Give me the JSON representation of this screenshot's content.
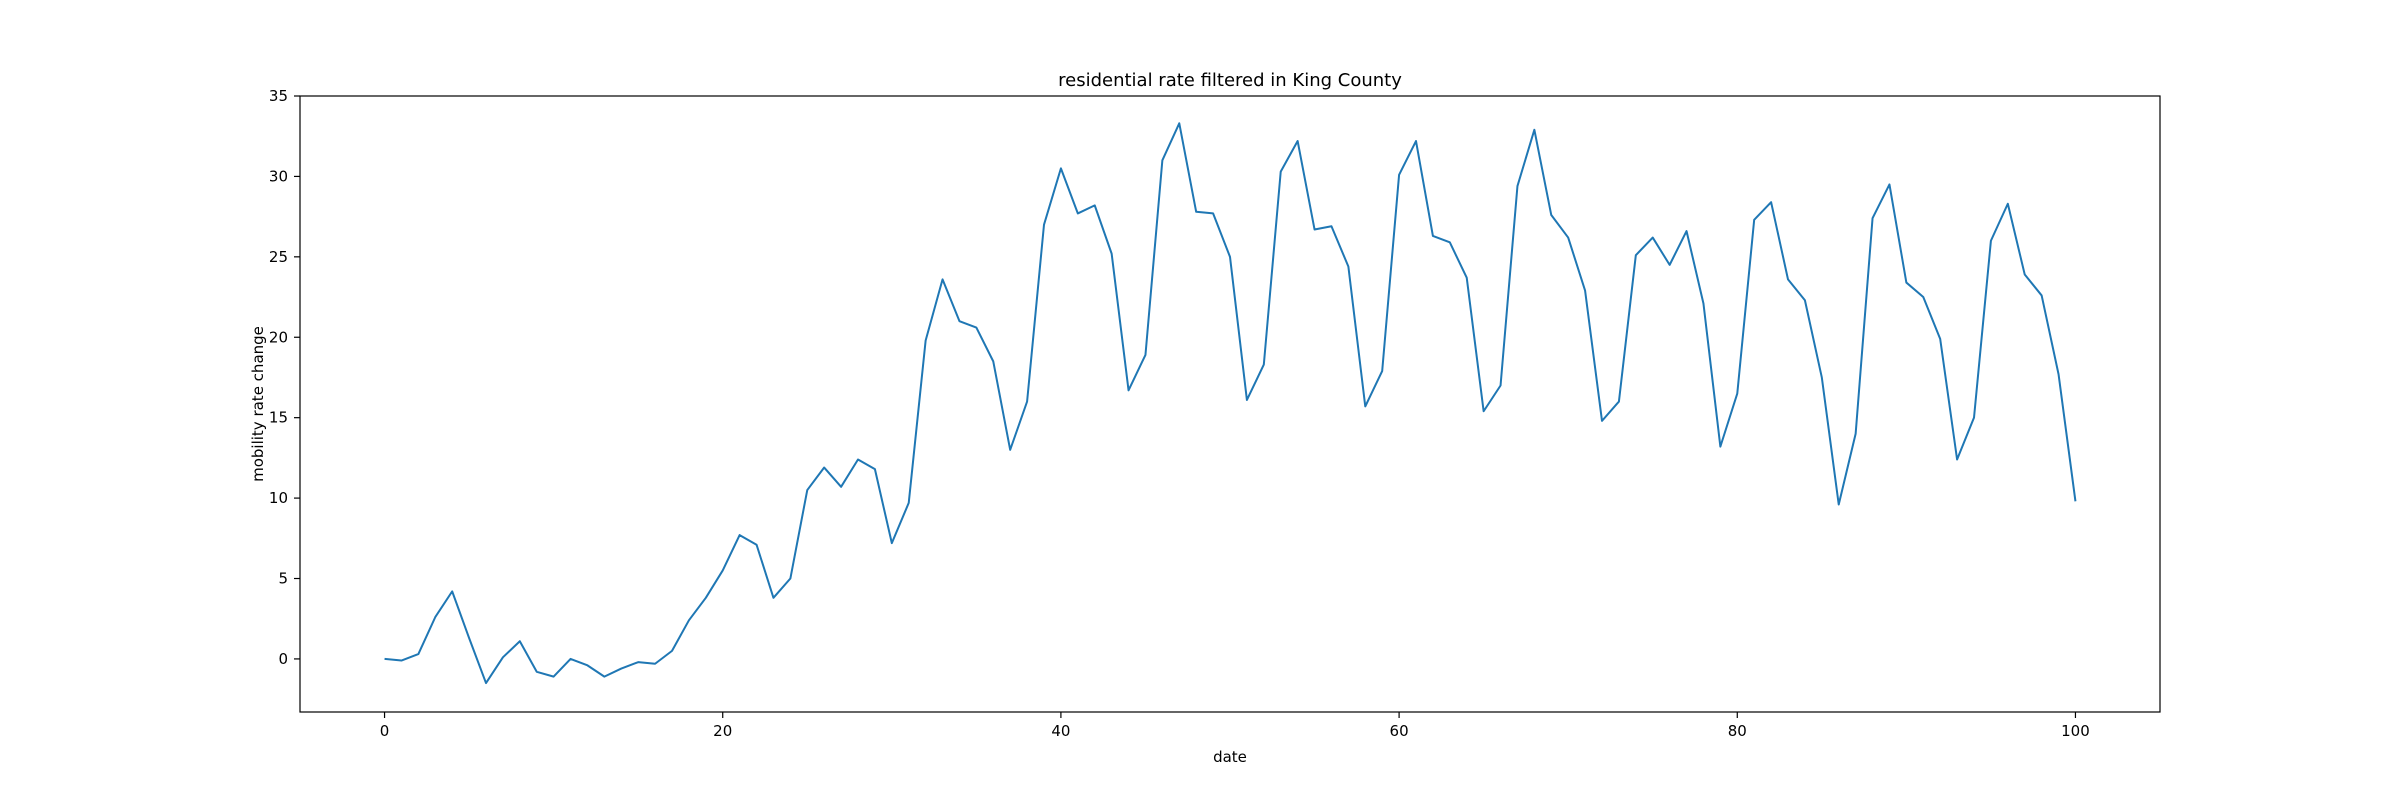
{
  "chart_data": {
    "type": "line",
    "title": "residential rate filtered in King County",
    "xlabel": "date",
    "ylabel": "mobility rate change",
    "xlim": [
      -5,
      105
    ],
    "ylim": [
      -3.3,
      35
    ],
    "xticks": [
      0,
      20,
      40,
      60,
      80,
      100
    ],
    "yticks": [
      0,
      5,
      10,
      15,
      20,
      25,
      30,
      35
    ],
    "grid": false,
    "color": "#1f77b4",
    "series": [
      {
        "x": [
          0,
          1,
          2,
          3,
          4,
          5,
          6,
          7,
          8,
          9,
          10,
          11,
          12,
          13,
          14,
          15,
          16,
          17,
          18,
          19,
          20,
          21,
          22,
          23,
          24,
          25,
          26,
          27,
          28,
          29,
          30,
          31,
          32,
          33,
          34,
          35,
          36,
          37,
          38,
          39,
          40,
          41,
          42,
          43,
          44,
          45,
          46,
          47,
          48,
          49,
          50,
          51,
          52,
          53,
          54,
          55,
          56,
          57,
          58,
          59,
          60,
          61,
          62,
          63,
          64,
          65,
          66,
          67,
          68,
          69,
          70,
          71,
          72,
          73,
          74,
          75,
          76,
          77,
          78,
          79,
          80,
          81,
          82,
          83,
          84,
          85,
          86,
          87,
          88,
          89,
          90,
          91,
          92,
          93,
          94,
          95,
          96,
          97,
          98,
          99,
          100
        ],
        "y": [
          0.0,
          -0.1,
          0.3,
          2.6,
          4.2,
          1.3,
          -1.5,
          0.1,
          1.1,
          -0.8,
          -1.1,
          0.0,
          -0.4,
          -1.1,
          -0.6,
          -0.2,
          -0.3,
          0.5,
          2.4,
          3.8,
          5.5,
          7.7,
          7.1,
          3.8,
          5.0,
          10.5,
          11.9,
          10.7,
          12.4,
          11.8,
          7.2,
          9.7,
          19.8,
          23.6,
          21.0,
          20.6,
          18.5,
          13.0,
          16.0,
          27.0,
          30.5,
          27.7,
          28.2,
          25.2,
          16.7,
          18.9,
          31.0,
          33.3,
          27.8,
          27.7,
          25.0,
          16.1,
          18.3,
          30.3,
          32.2,
          26.7,
          26.9,
          24.4,
          15.7,
          17.9,
          30.1,
          32.2,
          26.3,
          25.9,
          23.7,
          15.4,
          17.0,
          29.4,
          32.9,
          27.6,
          26.2,
          22.9,
          14.8,
          16.0,
          25.1,
          26.2,
          24.5,
          26.6,
          22.1,
          13.2,
          16.5,
          27.3,
          28.4,
          23.6,
          22.3,
          17.5,
          9.6,
          14.0,
          27.4,
          29.5,
          23.4,
          22.5,
          19.9,
          12.4,
          15.0,
          26.0,
          28.3,
          23.9,
          22.6,
          17.7,
          9.8
        ]
      }
    ]
  }
}
